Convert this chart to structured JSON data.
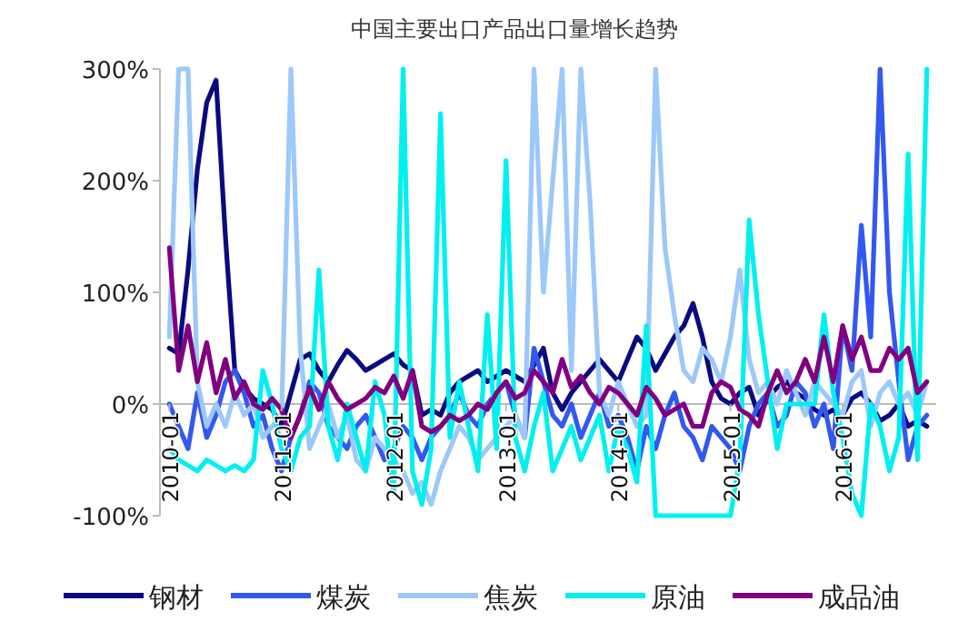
{
  "chart_data": {
    "type": "line",
    "title": "中国主要出口产品出口量增长趋势",
    "x": [
      "2010-01",
      "2010-02",
      "2010-03",
      "2010-04",
      "2010-05",
      "2010-06",
      "2010-07",
      "2010-08",
      "2010-09",
      "2010-10",
      "2010-11",
      "2010-12",
      "2011-01",
      "2011-02",
      "2011-03",
      "2011-04",
      "2011-05",
      "2011-06",
      "2011-07",
      "2011-08",
      "2011-09",
      "2011-10",
      "2011-11",
      "2011-12",
      "2012-01",
      "2012-02",
      "2012-03",
      "2012-04",
      "2012-05",
      "2012-06",
      "2012-07",
      "2012-08",
      "2012-09",
      "2012-10",
      "2012-11",
      "2012-12",
      "2013-01",
      "2013-02",
      "2013-03",
      "2013-04",
      "2013-05",
      "2013-06",
      "2013-07",
      "2013-08",
      "2013-09",
      "2013-10",
      "2013-11",
      "2013-12",
      "2014-01",
      "2014-02",
      "2014-03",
      "2014-04",
      "2014-05",
      "2014-06",
      "2014-07",
      "2014-08",
      "2014-09",
      "2014-10",
      "2014-11",
      "2014-12",
      "2015-01",
      "2015-02",
      "2015-03",
      "2015-04",
      "2015-05",
      "2015-06",
      "2015-07",
      "2015-08",
      "2015-09",
      "2015-10",
      "2015-11",
      "2015-12",
      "2016-01",
      "2016-02",
      "2016-03",
      "2016-04",
      "2016-05",
      "2016-06",
      "2016-07",
      "2016-08",
      "2016-09",
      "2016-10"
    ],
    "series": [
      {
        "name": "钢材",
        "color": "#0a0a80",
        "values": [
          50,
          45,
          120,
          210,
          270,
          290,
          150,
          30,
          15,
          5,
          0,
          -5,
          -20,
          10,
          40,
          45,
          30,
          20,
          35,
          48,
          40,
          30,
          35,
          40,
          45,
          35,
          30,
          -10,
          -5,
          -10,
          10,
          20,
          25,
          30,
          20,
          25,
          30,
          25,
          20,
          35,
          50,
          10,
          -5,
          10,
          20,
          30,
          40,
          30,
          20,
          40,
          60,
          50,
          30,
          45,
          60,
          70,
          90,
          60,
          20,
          5,
          0,
          10,
          15,
          -10,
          5,
          15,
          20,
          10,
          5,
          -5,
          -10,
          -5,
          -10,
          5,
          10,
          0,
          -15,
          -10,
          0,
          -20,
          -15,
          -20
        ]
      },
      {
        "name": "煤炭",
        "color": "#3358f0",
        "values": [
          0,
          -20,
          -40,
          10,
          -30,
          -10,
          20,
          30,
          10,
          -20,
          -10,
          -40,
          -60,
          -30,
          -10,
          20,
          10,
          -20,
          -30,
          -40,
          -20,
          -10,
          -30,
          -50,
          -40,
          -20,
          -30,
          -50,
          -30,
          -20,
          -10,
          10,
          -10,
          -20,
          0,
          10,
          20,
          -10,
          -30,
          50,
          20,
          -10,
          -20,
          0,
          -30,
          -10,
          10,
          -20,
          -10,
          -30,
          -60,
          -20,
          -40,
          -10,
          10,
          -20,
          -30,
          -50,
          -20,
          -30,
          -40,
          -60,
          -20,
          0,
          10,
          -20,
          -10,
          20,
          10,
          -20,
          0,
          -40,
          70,
          30,
          160,
          60,
          300,
          100,
          20,
          -50,
          -20,
          -10
        ]
      },
      {
        "name": "焦炭",
        "color": "#9cc8fa",
        "values": [
          60,
          300,
          300,
          20,
          -20,
          0,
          -20,
          10,
          -10,
          0,
          -30,
          -20,
          -10,
          300,
          50,
          -40,
          -20,
          0,
          -30,
          -10,
          -50,
          -60,
          -30,
          -40,
          -50,
          -60,
          -80,
          -70,
          -90,
          -60,
          -40,
          -20,
          -30,
          -50,
          -40,
          -30,
          -20,
          -10,
          -30,
          300,
          100,
          200,
          300,
          30,
          300,
          180,
          10,
          -10,
          20,
          0,
          -20,
          -10,
          300,
          140,
          80,
          30,
          20,
          50,
          40,
          20,
          60,
          120,
          40,
          10,
          20,
          0,
          30,
          10,
          -10,
          20,
          10,
          0,
          -10,
          20,
          30,
          -20,
          10,
          20,
          0,
          10,
          -10,
          20
        ]
      },
      {
        "name": "原油",
        "color": "#00f0f0",
        "values": [
          -40,
          -50,
          -55,
          -60,
          -50,
          -55,
          -60,
          -55,
          -60,
          -50,
          30,
          0,
          -40,
          -60,
          -30,
          -20,
          120,
          -20,
          -50,
          0,
          -30,
          -60,
          20,
          -10,
          -80,
          300,
          -60,
          -90,
          -40,
          260,
          -30,
          20,
          -20,
          -60,
          80,
          -40,
          218,
          -30,
          -60,
          -20,
          10,
          -60,
          -40,
          -20,
          -50,
          -30,
          -10,
          -60,
          -20,
          -40,
          -70,
          70,
          -100,
          -100,
          -100,
          -100,
          -100,
          -100,
          -100,
          -100,
          -100,
          -50,
          165,
          80,
          20,
          -40,
          0,
          0,
          0,
          0,
          80,
          10,
          -30,
          -80,
          -100,
          0,
          -20,
          -60,
          -30,
          224,
          -50,
          300
        ]
      },
      {
        "name": "成品油",
        "color": "#800080",
        "values": [
          140,
          30,
          70,
          20,
          55,
          10,
          40,
          5,
          20,
          0,
          -5,
          5,
          -5,
          -30,
          -10,
          15,
          -5,
          20,
          5,
          -5,
          0,
          5,
          15,
          10,
          25,
          5,
          30,
          -20,
          -25,
          -20,
          -10,
          -15,
          -10,
          0,
          -5,
          10,
          20,
          5,
          10,
          30,
          20,
          10,
          40,
          15,
          25,
          10,
          0,
          15,
          10,
          0,
          -10,
          15,
          5,
          -10,
          -5,
          0,
          -20,
          -20,
          10,
          20,
          15,
          -5,
          -10,
          -20,
          10,
          30,
          10,
          20,
          40,
          20,
          60,
          20,
          70,
          40,
          60,
          30,
          30,
          50,
          40,
          50,
          10,
          20
        ]
      }
    ],
    "xlim": [
      "2009-12",
      "2016-11"
    ],
    "xticks": [
      {
        "value": "2010-01",
        "label": "2010-01"
      },
      {
        "value": "2011-01",
        "label": "2011-01"
      },
      {
        "value": "2012-01",
        "label": "2012-01"
      },
      {
        "value": "2013-01",
        "label": "2013-01"
      },
      {
        "value": "2014-01",
        "label": "2014-01"
      },
      {
        "value": "2015-01",
        "label": "2015-01"
      },
      {
        "value": "2016-01",
        "label": "2016-01"
      }
    ],
    "ylim": [
      -100,
      300
    ],
    "yticks": [
      {
        "value": -100,
        "label": "-100%"
      },
      {
        "value": 0,
        "label": "0%"
      },
      {
        "value": 100,
        "label": "100%"
      },
      {
        "value": 200,
        "label": "200%"
      },
      {
        "value": 300,
        "label": "300%"
      }
    ],
    "grid": false,
    "legend": "bottom",
    "marker": "none",
    "line_style": "solid"
  }
}
